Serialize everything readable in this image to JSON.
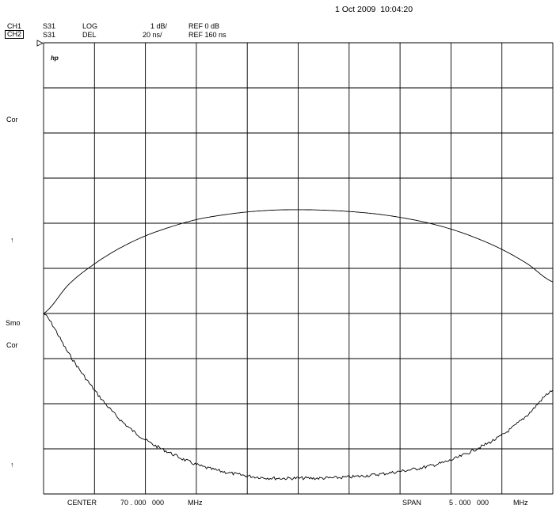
{
  "timestamp": "1 Oct 2009  10:04:20",
  "channels": [
    {
      "label": "CH1",
      "param": "S31",
      "format": "LOG",
      "scale": "1 dB/",
      "ref": "REF 0 dB"
    },
    {
      "label": "CH2",
      "param": "S31",
      "format": "DEL",
      "scale": "20 ns/",
      "ref": "REF 160 ns"
    }
  ],
  "left_annotations": {
    "cor1": "Cor",
    "arrow1": "↑",
    "smo": "Smo",
    "cor2": "Cor",
    "arrow2": "↑"
  },
  "logo": "hp",
  "footer": {
    "center_label": "CENTER",
    "center_value": "70 . 000   000",
    "center_unit": "MHz",
    "span_label": "SPAN",
    "span_value": "5 . 000   000",
    "span_unit": "MHz"
  },
  "colors": {
    "trace": "#000000",
    "grid": "#000000",
    "background": "#ffffff"
  },
  "chart_data": {
    "type": "line",
    "grid": true,
    "grid_divisions": {
      "x": 10,
      "y": 10
    },
    "x_center_mhz": 70.0,
    "x_span_mhz": 5.0,
    "xlim": [
      67.5,
      72.5
    ],
    "series": [
      {
        "channel": "CH1",
        "unit": "dB",
        "ylim": [
          -5,
          5
        ],
        "x": [
          67.5,
          67.75,
          68.0,
          68.25,
          68.5,
          68.75,
          69.0,
          69.25,
          69.5,
          69.75,
          70.0,
          70.25,
          70.5,
          70.75,
          71.0,
          71.25,
          71.5,
          71.75,
          72.0,
          72.25,
          72.5
        ],
        "y": [
          -1.0,
          -0.35,
          0.1,
          0.45,
          0.72,
          0.92,
          1.08,
          1.18,
          1.25,
          1.29,
          1.3,
          1.29,
          1.26,
          1.21,
          1.13,
          1.02,
          0.87,
          0.67,
          0.42,
          0.1,
          -0.3
        ]
      },
      {
        "channel": "CH2",
        "unit": "ns",
        "ylim": [
          60,
          260
        ],
        "x": [
          67.5,
          67.75,
          68.0,
          68.25,
          68.5,
          68.75,
          69.0,
          69.25,
          69.5,
          69.75,
          70.0,
          70.25,
          70.5,
          70.75,
          71.0,
          71.25,
          71.5,
          71.75,
          72.0,
          72.25,
          72.5
        ],
        "y": [
          140,
          122,
          106,
          93,
          84,
          78,
          73,
          70,
          68,
          67,
          67,
          67,
          67.5,
          68.5,
          70,
          72,
          75,
          80,
          86,
          95,
          106
        ]
      }
    ]
  }
}
